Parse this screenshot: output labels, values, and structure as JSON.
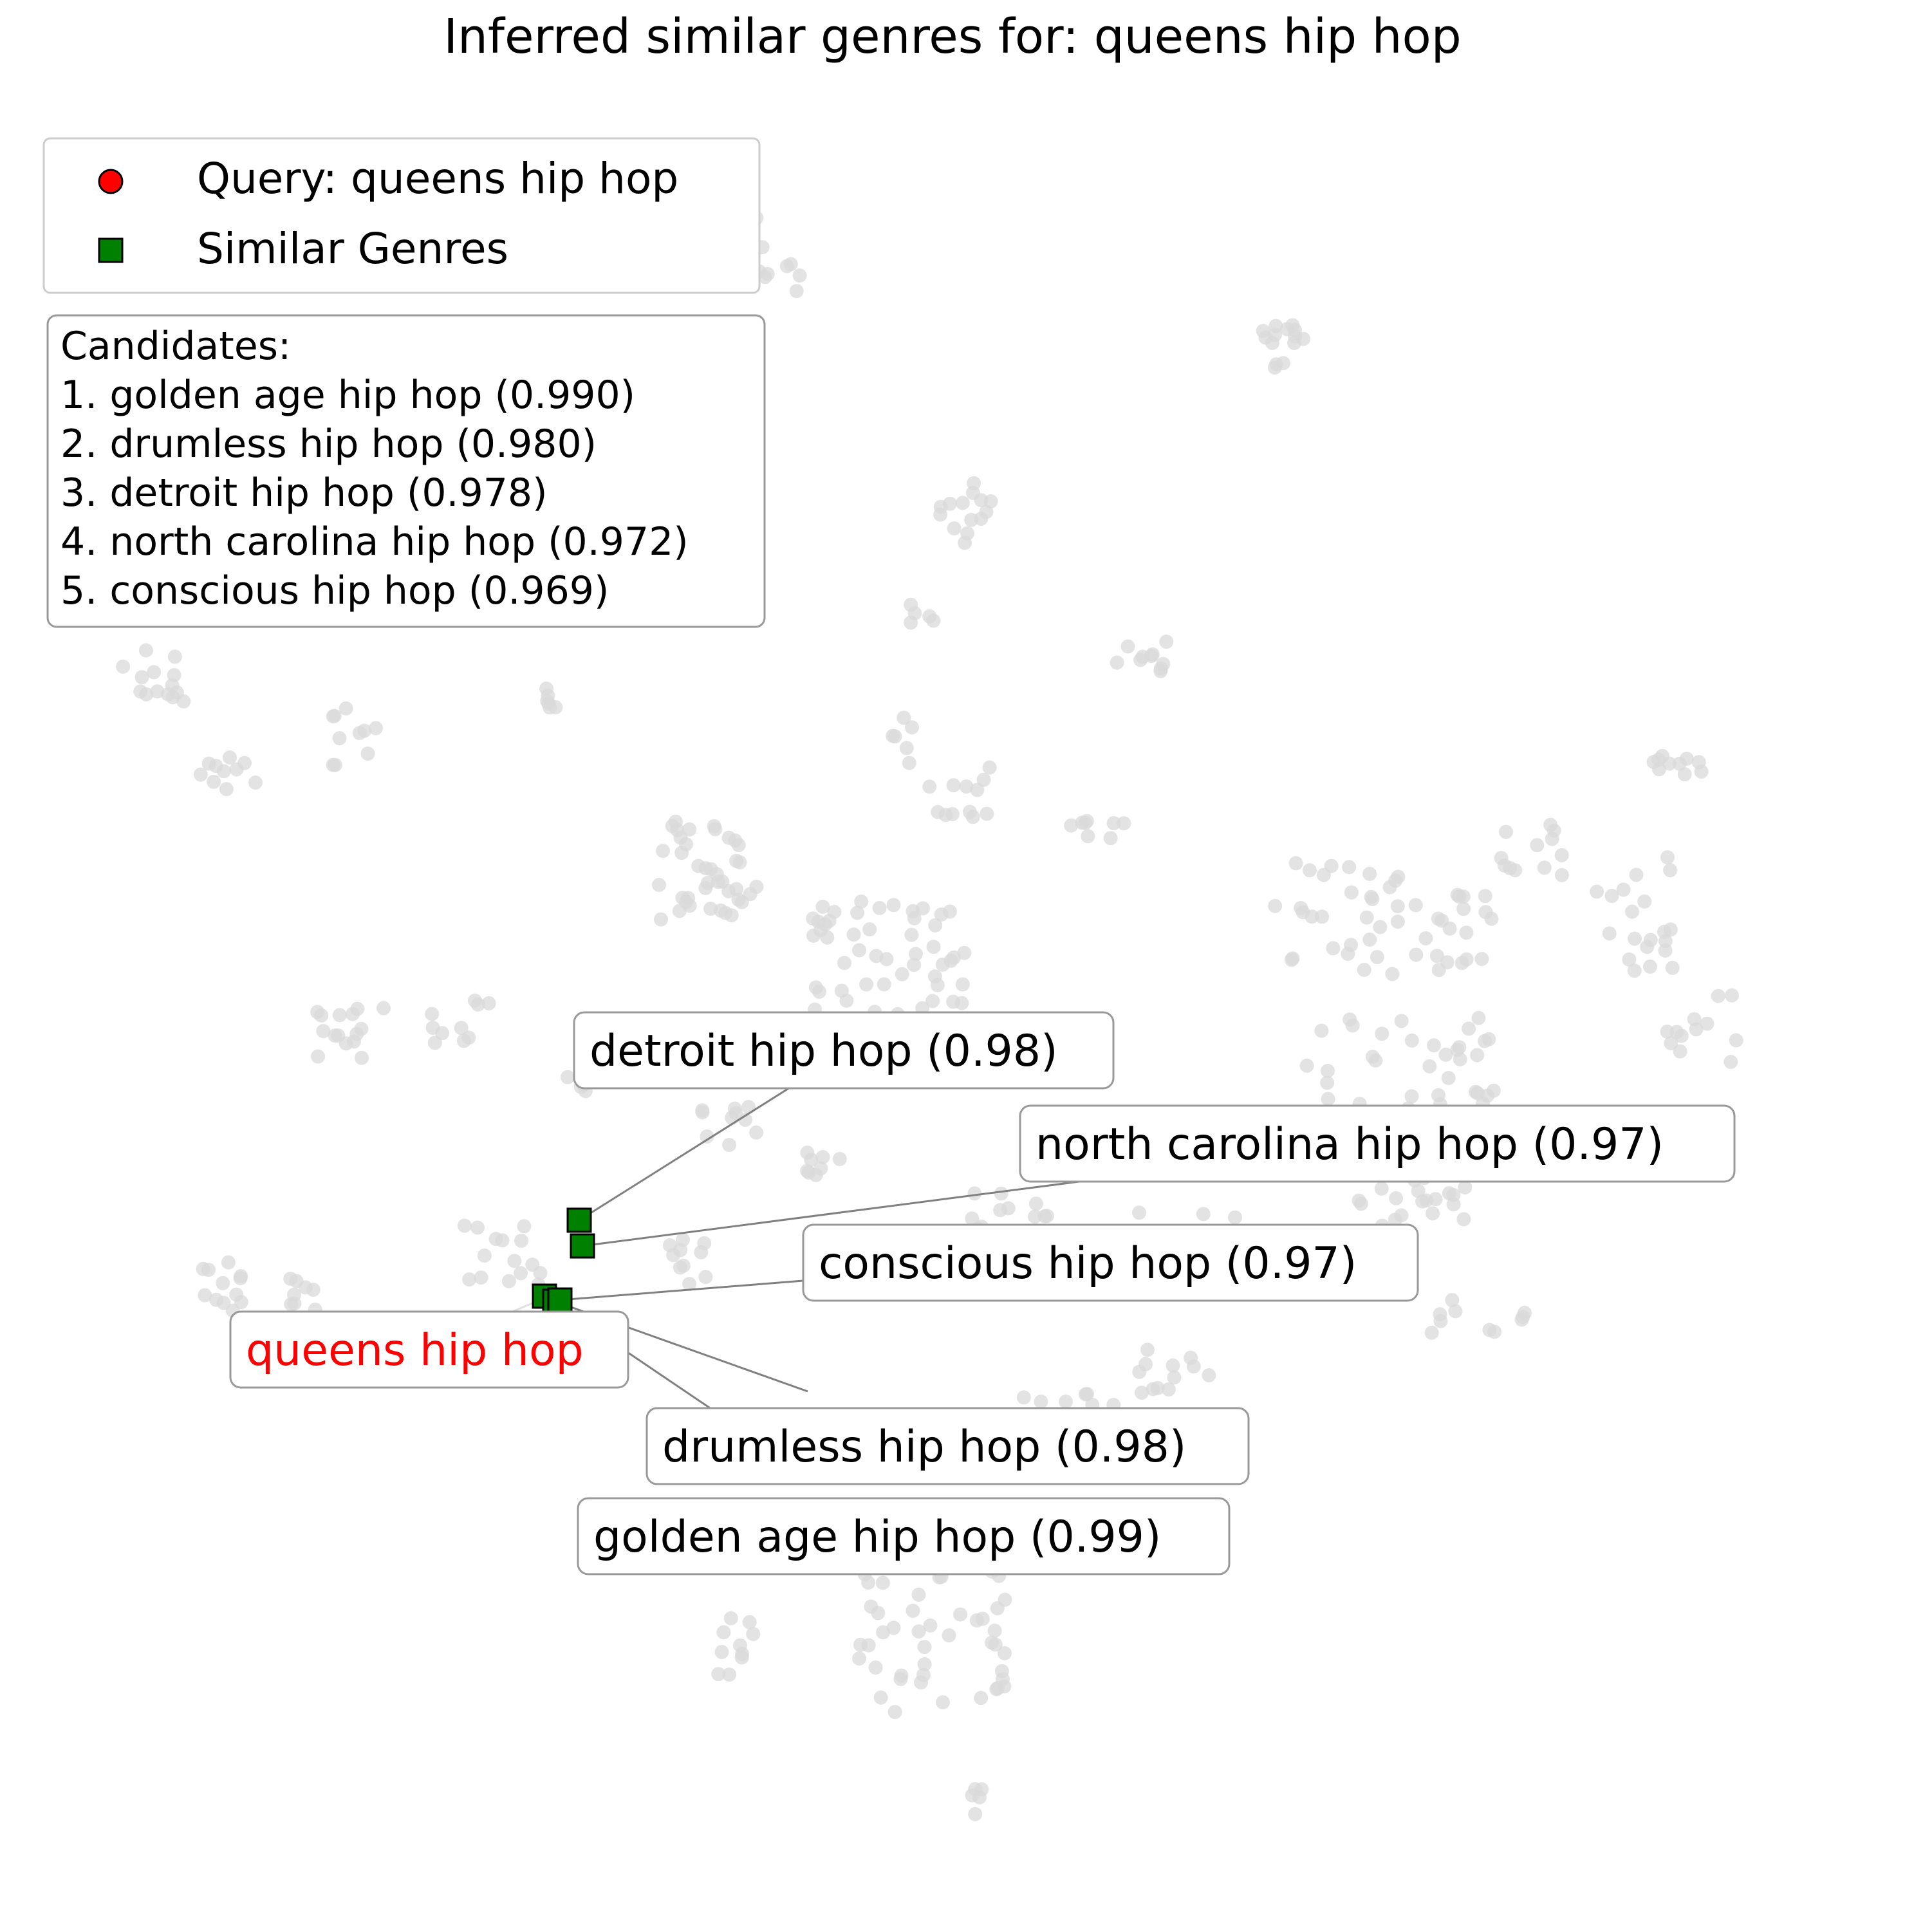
{
  "chart_data": {
    "type": "scatter",
    "title": "Inferred similar genres for: queens hip hop",
    "xlabel": "",
    "ylabel": "",
    "axes_visible": false,
    "grid": false,
    "legend_placement": "top-left",
    "legend": [
      {
        "label": "Query: queens hip hop",
        "marker": "circle",
        "color": "#ff0000"
      },
      {
        "label": "Similar Genres",
        "marker": "square",
        "color": "#008000"
      }
    ],
    "candidates_box": {
      "heading": "Candidates:",
      "lines": [
        "1. golden age hip hop (0.990)",
        "2. drumless hip hop (0.980)",
        "3. detroit hip hop (0.978)",
        "4. north carolina hip hop (0.972)",
        "5. conscious hip hop (0.969)"
      ]
    },
    "query": {
      "name": "queens hip hop",
      "label": "queens hip hop",
      "color": "#ff0000"
    },
    "similar": [
      {
        "name": "golden age hip hop",
        "label": "golden age hip hop (0.99)",
        "score": 0.99
      },
      {
        "name": "drumless hip hop",
        "label": "drumless hip hop (0.98)",
        "score": 0.98
      },
      {
        "name": "detroit hip hop",
        "label": "detroit hip hop (0.98)",
        "score": 0.98
      },
      {
        "name": "north carolina hip hop",
        "label": "north carolina hip hop (0.97)",
        "score": 0.97
      },
      {
        "name": "conscious hip hop",
        "label": "conscious hip hop (0.97)",
        "score": 0.97
      }
    ],
    "colors": {
      "background_points": "#d9d9d9",
      "query": "#ff0000",
      "similar": "#008000",
      "connector": "#808080",
      "label_border": "#999999",
      "legend_border": "#cccccc"
    }
  }
}
